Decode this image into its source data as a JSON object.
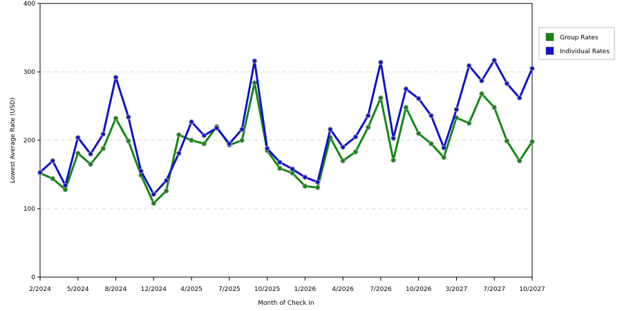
{
  "chart_data": {
    "type": "line",
    "x_axis_label": "Month of Check In",
    "y_axis_label": "Lowest Average Rate (USD)",
    "ylim": [
      0,
      400
    ],
    "y_ticks": [
      0,
      100,
      200,
      300,
      400
    ],
    "x_tick_labels": [
      "2/2024",
      "5/2024",
      "8/2024",
      "12/2024",
      "4/2025",
      "7/2025",
      "10/2025",
      "1/2026",
      "4/2026",
      "7/2026",
      "10/2026",
      "3/2027",
      "7/2027",
      "10/2027"
    ],
    "grid": "horizontal dashed",
    "legend_position": "right",
    "series": [
      {
        "name": "Group Rates",
        "color": "#118811",
        "values": [
          152,
          144,
          128,
          181,
          165,
          188,
          232,
          199,
          149,
          108,
          126,
          208,
          200,
          195,
          220,
          193,
          200,
          284,
          185,
          159,
          152,
          133,
          131,
          204,
          170,
          183,
          219,
          262,
          171,
          248,
          210,
          195,
          175,
          233,
          225,
          268,
          248,
          199,
          170,
          198
        ]
      },
      {
        "name": "Individual Rates",
        "color": "#1111cc",
        "values": [
          153,
          170,
          134,
          204,
          180,
          209,
          292,
          234,
          155,
          121,
          141,
          181,
          227,
          207,
          218,
          195,
          216,
          316,
          188,
          168,
          158,
          146,
          139,
          216,
          190,
          205,
          236,
          314,
          203,
          275,
          261,
          236,
          189,
          245,
          309,
          287,
          317,
          283,
          262,
          305
        ]
      }
    ]
  }
}
